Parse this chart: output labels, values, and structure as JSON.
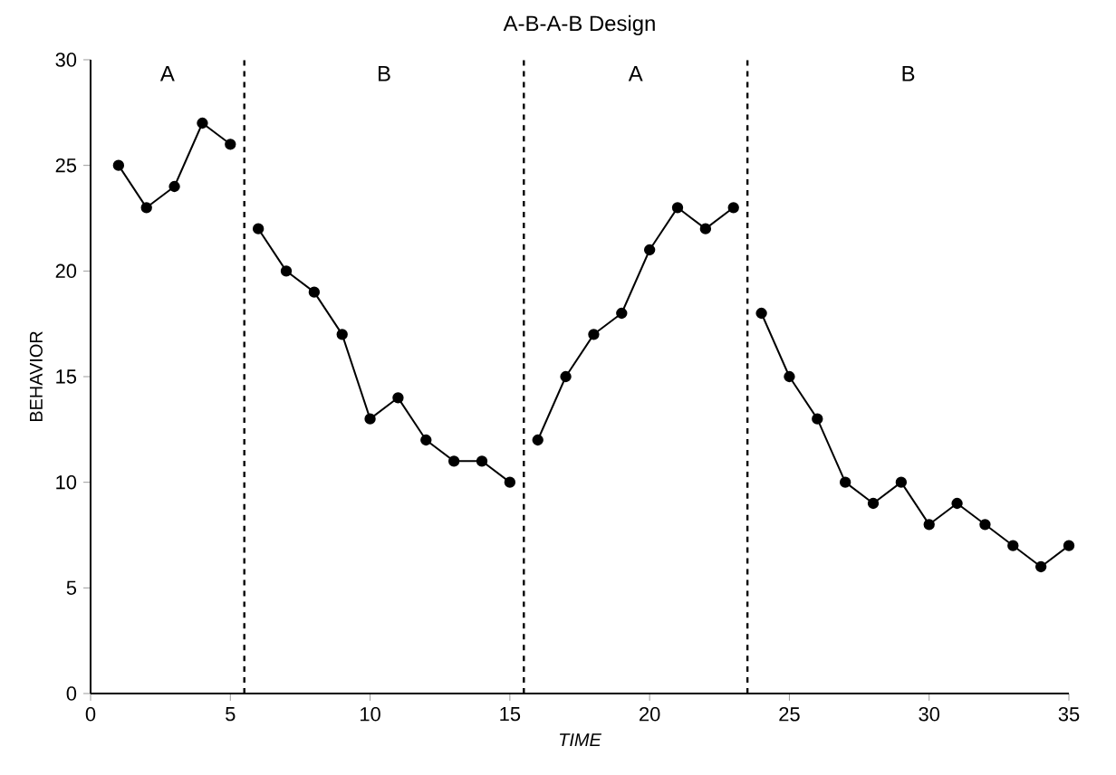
{
  "chart_data": {
    "type": "line",
    "title": "A-B-A-B Design",
    "xlabel": "TIME",
    "ylabel": "BEHAVIOR",
    "xlim": [
      0,
      35
    ],
    "xticks": [
      0,
      5,
      10,
      15,
      20,
      25,
      30,
      35
    ],
    "ylim": [
      0,
      30
    ],
    "yticks": [
      0,
      5,
      10,
      15,
      20,
      25,
      30
    ],
    "grid": false,
    "marker": "circle",
    "line_style": "solid",
    "series": [
      {
        "color": "#000000",
        "x": [
          1,
          2,
          3,
          4,
          5
        ],
        "values": [
          25,
          23,
          24,
          27,
          26
        ]
      },
      {
        "color": "#000000",
        "x": [
          6,
          7,
          8,
          9,
          10,
          11,
          12,
          13,
          14,
          15
        ],
        "values": [
          22,
          20,
          19,
          17,
          13,
          14,
          12,
          11,
          11,
          10
        ]
      },
      {
        "color": "#000000",
        "x": [
          16,
          17,
          18,
          19,
          20,
          21,
          22,
          23
        ],
        "values": [
          12,
          15,
          17,
          18,
          21,
          23,
          22,
          23
        ]
      },
      {
        "color": "#000000",
        "x": [
          24,
          25,
          26,
          27,
          28,
          29,
          30,
          31,
          32,
          33,
          34,
          35
        ],
        "values": [
          18,
          15,
          13,
          10,
          9,
          10,
          8,
          9,
          8,
          7,
          6,
          7
        ]
      }
    ],
    "ref_lines": [
      {
        "axis": "x",
        "value": 5.5,
        "color": "#000000",
        "line_style": "dashed"
      },
      {
        "axis": "x",
        "value": 15.5,
        "color": "#000000",
        "line_style": "dashed"
      },
      {
        "axis": "x",
        "value": 23.5,
        "color": "#000000",
        "line_style": "dashed"
      }
    ],
    "annotations": [
      "A",
      "B",
      "A",
      "B"
    ]
  }
}
